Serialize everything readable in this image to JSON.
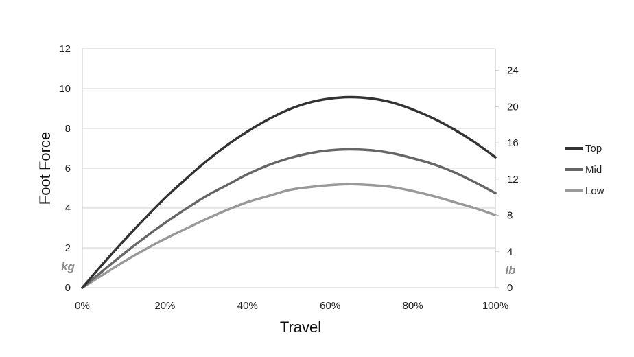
{
  "chart_data": {
    "type": "line",
    "title": "",
    "xlabel": "Travel",
    "ylabel": "Foot Force",
    "y_unit_left": "kg",
    "y_unit_right": "lb",
    "x": [
      0,
      5,
      10,
      15,
      20,
      25,
      30,
      35,
      40,
      45,
      50,
      55,
      60,
      65,
      70,
      75,
      80,
      85,
      90,
      95,
      100
    ],
    "xlim": [
      0,
      100
    ],
    "x_ticks": [
      "0%",
      "20%",
      "40%",
      "60%",
      "80%",
      "100%"
    ],
    "ylim": [
      0,
      12
    ],
    "y_ticks": [
      "0",
      "2",
      "4",
      "6",
      "8",
      "10",
      "12"
    ],
    "y2lim": [
      0,
      26.4
    ],
    "y2_ticks": [
      "0",
      "4",
      "8",
      "12",
      "16",
      "20",
      "24"
    ],
    "grid": true,
    "legend": "right",
    "series": [
      {
        "name": "Top",
        "color": "#333333",
        "values": [
          0,
          1.2,
          2.35,
          3.45,
          4.5,
          5.45,
          6.35,
          7.15,
          7.85,
          8.45,
          8.95,
          9.3,
          9.5,
          9.57,
          9.5,
          9.3,
          8.95,
          8.5,
          7.95,
          7.3,
          6.55
        ]
      },
      {
        "name": "Mid",
        "color": "#666666",
        "values": [
          0,
          0.85,
          1.7,
          2.5,
          3.25,
          3.95,
          4.6,
          5.15,
          5.7,
          6.15,
          6.5,
          6.75,
          6.9,
          6.95,
          6.9,
          6.75,
          6.5,
          6.2,
          5.8,
          5.3,
          4.75
        ]
      },
      {
        "name": "Low",
        "color": "#999999",
        "values": [
          0,
          0.65,
          1.3,
          1.9,
          2.45,
          2.95,
          3.45,
          3.9,
          4.3,
          4.6,
          4.9,
          5.05,
          5.15,
          5.2,
          5.15,
          5.05,
          4.85,
          4.6,
          4.3,
          4.0,
          3.65
        ]
      }
    ]
  }
}
